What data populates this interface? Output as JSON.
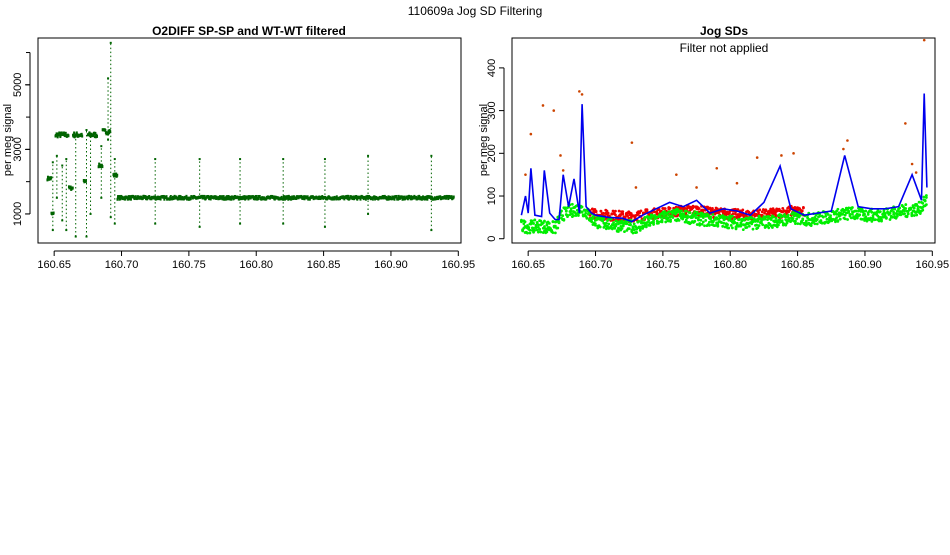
{
  "page_title": "110609a   Jog SD Filtering",
  "chart_data": [
    {
      "type": "scatter",
      "title": "O2DIFF SP-SP and WT-WT filtered",
      "ylabel": "per meg signal",
      "xlabel": "",
      "xlim": [
        160.638,
        160.952
      ],
      "ylim": [
        100,
        6450
      ],
      "x_ticks": [
        160.65,
        160.7,
        160.75,
        160.8,
        160.85,
        160.9,
        160.95
      ],
      "y_ticks": [
        1000,
        3000,
        5000
      ],
      "grid": false,
      "colors": {
        "points": "#006400"
      },
      "series": [
        {
          "segments": [
            {
              "x0": 160.645,
              "x1": 160.648,
              "y": 2100
            },
            {
              "x0": 160.648,
              "x1": 160.65,
              "y": 1000
            },
            {
              "x0": 160.651,
              "x1": 160.661,
              "y": 3450
            },
            {
              "x0": 160.661,
              "x1": 160.664,
              "y": 1800
            },
            {
              "x0": 160.664,
              "x1": 160.671,
              "y": 3450
            },
            {
              "x0": 160.672,
              "x1": 160.674,
              "y": 2000
            },
            {
              "x0": 160.675,
              "x1": 160.682,
              "y": 3450
            },
            {
              "x0": 160.683,
              "x1": 160.686,
              "y": 2500
            },
            {
              "x0": 160.686,
              "x1": 160.692,
              "y": 3550
            },
            {
              "x0": 160.694,
              "x1": 160.697,
              "y": 2200
            },
            {
              "x0": 160.697,
              "x1": 160.947,
              "y": 1500
            }
          ],
          "spikes": [
            {
              "x": 160.649,
              "y0": 500,
              "y1": 2600
            },
            {
              "x": 160.652,
              "y0": 1500,
              "y1": 2800
            },
            {
              "x": 160.656,
              "y0": 800,
              "y1": 2500
            },
            {
              "x": 160.659,
              "y0": 500,
              "y1": 2700
            },
            {
              "x": 160.666,
              "y0": 300,
              "y1": 3400
            },
            {
              "x": 160.674,
              "y0": 300,
              "y1": 3600
            },
            {
              "x": 160.677,
              "y0": 1000,
              "y1": 3400
            },
            {
              "x": 160.685,
              "y0": 1500,
              "y1": 3100
            },
            {
              "x": 160.69,
              "y0": 3300,
              "y1": 5200
            },
            {
              "x": 160.692,
              "y0": 900,
              "y1": 6300
            },
            {
              "x": 160.695,
              "y0": 700,
              "y1": 2700
            },
            {
              "x": 160.725,
              "y0": 700,
              "y1": 2700
            },
            {
              "x": 160.758,
              "y0": 600,
              "y1": 2700
            },
            {
              "x": 160.788,
              "y0": 700,
              "y1": 2700
            },
            {
              "x": 160.82,
              "y0": 700,
              "y1": 2700
            },
            {
              "x": 160.851,
              "y0": 600,
              "y1": 2700
            },
            {
              "x": 160.883,
              "y0": 1000,
              "y1": 2800
            },
            {
              "x": 160.93,
              "y0": 500,
              "y1": 2800
            }
          ]
        }
      ]
    },
    {
      "type": "line",
      "title": "Jog SDs",
      "annotation": "Filter not applied",
      "ylabel": "per meg signal",
      "xlabel": "",
      "xlim": [
        160.638,
        160.952
      ],
      "ylim": [
        -10,
        470
      ],
      "x_ticks": [
        160.65,
        160.7,
        160.75,
        160.8,
        160.85,
        160.9,
        160.95
      ],
      "y_ticks": [
        0,
        100,
        200,
        300,
        400
      ],
      "grid": false,
      "colors": {
        "blue_line": "#0000ee",
        "red_points": "#ee0000",
        "green_points": "#00ee00",
        "outliers": "#cc4400"
      },
      "series": [
        {
          "style": "blue-line",
          "x": [
            160.645,
            160.648,
            160.65,
            160.652,
            160.655,
            160.66,
            160.662,
            160.666,
            160.67,
            160.673,
            160.676,
            160.68,
            160.684,
            160.688,
            160.69,
            160.693,
            160.697,
            160.7,
            160.71,
            160.72,
            160.727,
            160.735,
            160.745,
            160.755,
            160.765,
            160.775,
            160.785,
            160.795,
            160.805,
            160.815,
            160.825,
            160.837,
            160.845,
            160.855,
            160.865,
            160.875,
            160.885,
            160.895,
            160.905,
            160.915,
            160.925,
            160.935,
            160.942,
            160.944,
            160.946
          ],
          "values": [
            55,
            100,
            60,
            165,
            55,
            52,
            160,
            60,
            45,
            45,
            150,
            75,
            140,
            60,
            315,
            75,
            60,
            55,
            50,
            48,
            40,
            55,
            70,
            85,
            75,
            90,
            60,
            70,
            65,
            55,
            85,
            170,
            70,
            55,
            60,
            65,
            195,
            75,
            70,
            70,
            75,
            150,
            90,
            340,
            120
          ]
        },
        {
          "style": "red-band",
          "x": [
            160.695,
            160.71,
            160.725,
            160.74,
            160.755,
            160.77,
            160.785,
            160.8,
            160.815,
            160.83,
            160.845,
            160.855
          ],
          "values": [
            60,
            55,
            52,
            58,
            62,
            68,
            62,
            58,
            55,
            58,
            65,
            62
          ]
        },
        {
          "style": "green-band",
          "x": [
            160.645,
            160.65,
            160.66,
            160.67,
            160.675,
            160.68,
            160.69,
            160.7,
            160.71,
            160.72,
            160.73,
            160.74,
            160.75,
            160.76,
            160.77,
            160.78,
            160.79,
            160.8,
            160.81,
            160.82,
            160.83,
            160.84,
            160.85,
            160.86,
            160.87,
            160.88,
            160.89,
            160.9,
            160.91,
            160.92,
            160.93,
            160.94,
            160.946
          ],
          "values": [
            30,
            28,
            30,
            25,
            55,
            65,
            70,
            40,
            35,
            30,
            28,
            40,
            50,
            55,
            50,
            45,
            42,
            40,
            35,
            38,
            40,
            45,
            48,
            45,
            50,
            55,
            60,
            55,
            55,
            60,
            65,
            70,
            90
          ]
        },
        {
          "style": "outliers",
          "x": [
            160.648,
            160.652,
            160.661,
            160.669,
            160.674,
            160.676,
            160.688,
            160.69,
            160.727,
            160.73,
            160.76,
            160.775,
            160.79,
            160.805,
            160.82,
            160.838,
            160.847,
            160.884,
            160.887,
            160.93,
            160.935,
            160.938,
            160.944
          ],
          "values": [
            150,
            245,
            312,
            300,
            195,
            160,
            345,
            338,
            225,
            120,
            150,
            120,
            165,
            130,
            190,
            195,
            200,
            210,
            230,
            270,
            175,
            155,
            465
          ]
        }
      ]
    }
  ]
}
